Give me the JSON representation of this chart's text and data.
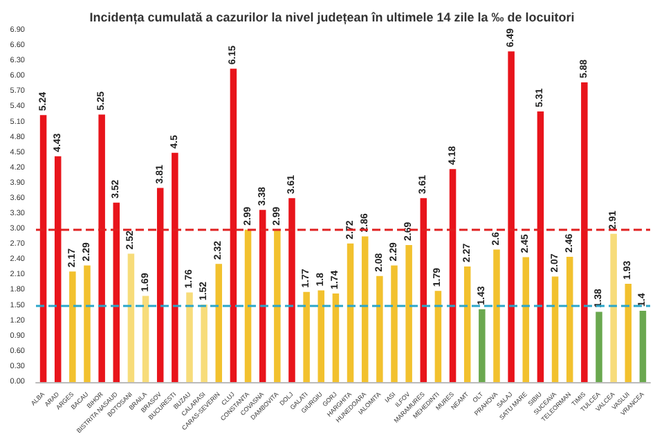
{
  "chart_data": {
    "type": "bar",
    "title": "Incidența cumulată a cazurilor la nivel județean în ultimele 14 zile la ‰ de locuitori",
    "categories": [
      "ALBA",
      "ARAD",
      "ARGES",
      "BACAU",
      "BIHOR",
      "BISTRITA NASAUD",
      "BOTOSANI",
      "BRAILA",
      "BRASOV",
      "BUCURESTI",
      "BUZAU",
      "CALARASI",
      "CARAS-SEVERIN",
      "CLUJ",
      "CONSTANTA",
      "COVASNA",
      "DAMBOVITA",
      "DOLJ",
      "GALATI",
      "GIURGIU",
      "GORJ",
      "HARGHITA",
      "HUNEDOARA",
      "IALOMITA",
      "IASI",
      "ILFOV",
      "MARAMURES",
      "MEHEDINTI",
      "MURES",
      "NEAMT",
      "OLT",
      "PRAHOVA",
      "SALAJ",
      "SATU MARE",
      "SIBIU",
      "SUCEAVA",
      "TELEORMAN",
      "TIMIS",
      "TULCEA",
      "VALCEA",
      "VASLUI",
      "VRANCEA"
    ],
    "values": [
      5.24,
      4.43,
      2.17,
      2.29,
      5.25,
      3.52,
      2.52,
      1.69,
      3.81,
      4.5,
      1.76,
      1.52,
      2.32,
      6.15,
      2.99,
      3.38,
      2.99,
      3.61,
      1.77,
      1.8,
      1.74,
      2.72,
      2.86,
      2.08,
      2.29,
      2.69,
      3.61,
      1.79,
      4.18,
      2.27,
      1.43,
      2.6,
      6.49,
      2.45,
      5.31,
      2.07,
      2.46,
      5.88,
      1.38,
      2.91,
      1.93,
      1.4
    ],
    "colors": [
      "#e8141b",
      "#e8141b",
      "#f2c12e",
      "#f2c12e",
      "#e8141b",
      "#e8141b",
      "#f7dc7a",
      "#f7dc7a",
      "#e8141b",
      "#e8141b",
      "#f7dc7a",
      "#f7dc7a",
      "#f2c12e",
      "#e8141b",
      "#f2c12e",
      "#e8141b",
      "#f2c12e",
      "#e8141b",
      "#f2c12e",
      "#f2c12e",
      "#f2c12e",
      "#f2c12e",
      "#f2c12e",
      "#f2c12e",
      "#f2c12e",
      "#f2c12e",
      "#e8141b",
      "#f2c12e",
      "#e8141b",
      "#f2c12e",
      "#6aa84f",
      "#f2c12e",
      "#e8141b",
      "#f2c12e",
      "#e8141b",
      "#f2c12e",
      "#f2c12e",
      "#e8141b",
      "#6aa84f",
      "#f7dc7a",
      "#f2c12e",
      "#6aa84f"
    ],
    "ylim": [
      0,
      6.9
    ],
    "yticks": [
      {
        "value": 0,
        "label": "0.00"
      },
      {
        "value": 0.3,
        "label": "0.30"
      },
      {
        "value": 0.6,
        "label": "0.60"
      },
      {
        "value": 0.9,
        "label": "0.90"
      },
      {
        "value": 1.2,
        "label": "1.20"
      },
      {
        "value": 1.5,
        "label": "1.50"
      },
      {
        "value": 1.8,
        "label": "1.80"
      },
      {
        "value": 2.1,
        "label": "2.10"
      },
      {
        "value": 2.4,
        "label": "2.40"
      },
      {
        "value": 2.7,
        "label": "2.70"
      },
      {
        "value": 3,
        "label": "3.00"
      },
      {
        "value": 3.3,
        "label": "3.30"
      },
      {
        "value": 3.6,
        "label": "3.60"
      },
      {
        "value": 3.9,
        "label": "3.90"
      },
      {
        "value": 4.2,
        "label": "4.20"
      },
      {
        "value": 4.5,
        "label": "4.50"
      },
      {
        "value": 4.8,
        "label": "4.80"
      },
      {
        "value": 5.1,
        "label": "5.10"
      },
      {
        "value": 5.4,
        "label": "5.40"
      },
      {
        "value": 5.7,
        "label": "5.70"
      },
      {
        "value": 6,
        "label": "6.00"
      },
      {
        "value": 6.3,
        "label": "6.30"
      },
      {
        "value": 6.6,
        "label": "6.60"
      },
      {
        "value": 6.9,
        "label": "6.90"
      }
    ],
    "ref_lines": [
      {
        "axis": "y",
        "value": 3,
        "color": "#e02020",
        "line_style": "dashed"
      },
      {
        "axis": "y",
        "value": 1.5,
        "color": "#2aa6c9",
        "line_style": "dashed"
      }
    ],
    "data_labels": true,
    "grid": false
  }
}
